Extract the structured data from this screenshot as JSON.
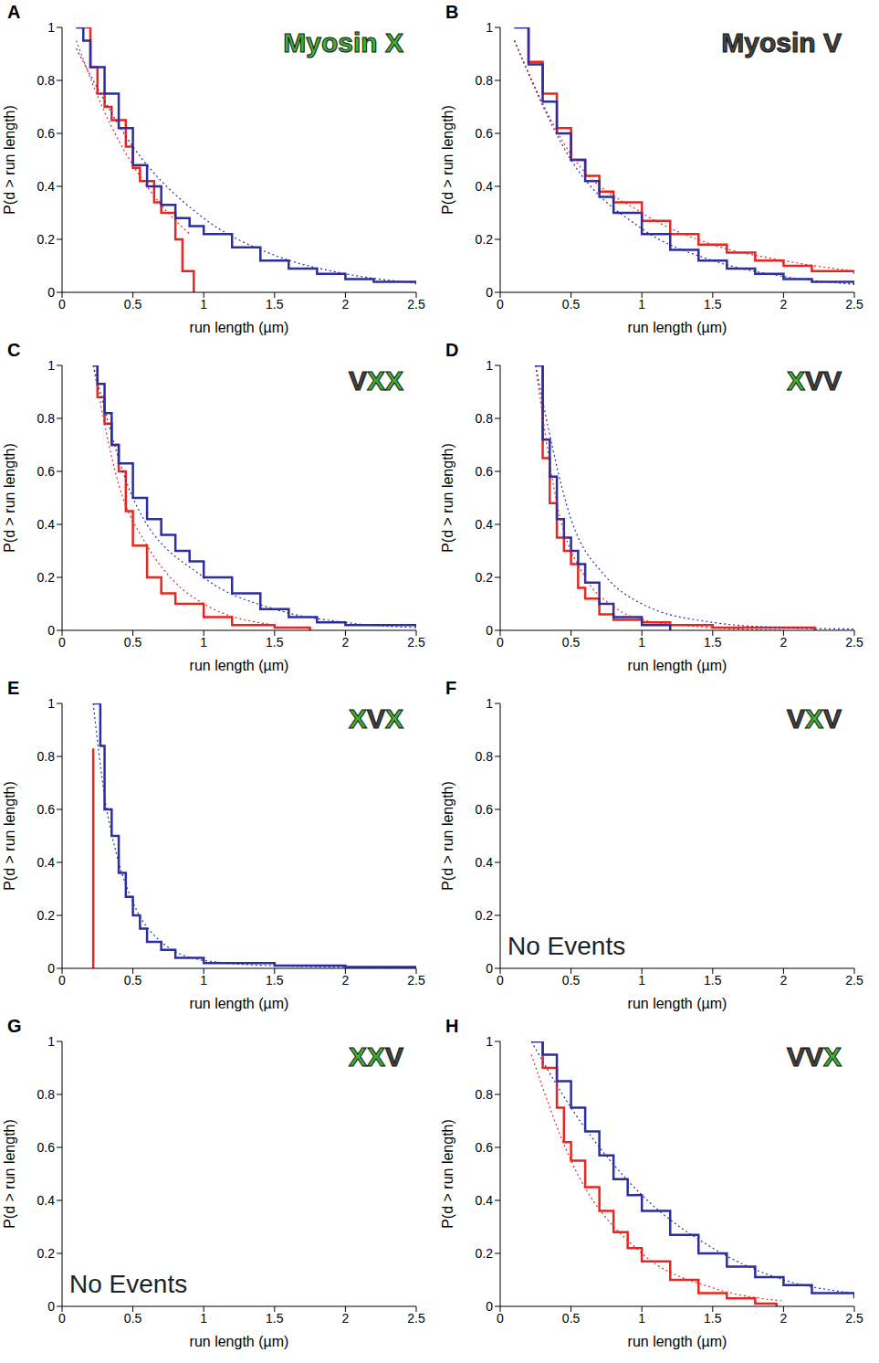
{
  "chart_data": [
    {
      "type": "line",
      "panel_label": "A",
      "title": "Myosin X",
      "xlabel": "run length (µm)",
      "ylabel": "P(d > run length)",
      "xlim": [
        0,
        2.5
      ],
      "ylim": [
        0,
        1
      ],
      "xticks": [
        0,
        0.5,
        1,
        1.5,
        2,
        2.5
      ],
      "yticks": [
        0,
        0.2,
        0.4,
        0.6,
        0.8,
        1
      ],
      "grid": false,
      "series": [
        {
          "type": "step",
          "color": "#e8251f",
          "line_style": "solid",
          "x": [
            0.1,
            0.2,
            0.25,
            0.3,
            0.35,
            0.45,
            0.5,
            0.55,
            0.65,
            0.7,
            0.8,
            0.85,
            0.93
          ],
          "values": [
            1,
            0.85,
            0.75,
            0.7,
            0.65,
            0.55,
            0.47,
            0.42,
            0.34,
            0.3,
            0.2,
            0.08,
            0
          ]
        },
        {
          "type": "step",
          "color": "#2b2e9e",
          "line_style": "solid",
          "x": [
            0.1,
            0.15,
            0.2,
            0.3,
            0.4,
            0.5,
            0.6,
            0.7,
            0.8,
            0.9,
            1.0,
            1.2,
            1.4,
            1.6,
            1.8,
            2.0,
            2.2,
            2.5
          ],
          "values": [
            1,
            0.95,
            0.85,
            0.75,
            0.62,
            0.48,
            0.4,
            0.33,
            0.28,
            0.25,
            0.22,
            0.17,
            0.12,
            0.09,
            0.07,
            0.05,
            0.04,
            0.03
          ]
        },
        {
          "type": "line",
          "color": "#e8251f",
          "line_style": "dotted",
          "x": [
            0.1,
            0.3,
            0.5,
            0.7,
            0.9
          ],
          "values": [
            0.95,
            0.68,
            0.48,
            0.33,
            0.22
          ]
        },
        {
          "type": "line",
          "color": "#2b2e9e",
          "line_style": "dotted",
          "x": [
            0.1,
            0.5,
            1,
            1.5,
            2,
            2.5
          ],
          "values": [
            0.92,
            0.55,
            0.28,
            0.14,
            0.07,
            0.035
          ]
        }
      ]
    },
    {
      "type": "line",
      "panel_label": "B",
      "title": "Myosin V",
      "xlabel": "run length (µm)",
      "ylabel": "P(d > run length)",
      "xlim": [
        0,
        2.5
      ],
      "ylim": [
        0,
        1
      ],
      "xticks": [
        0,
        0.5,
        1,
        1.5,
        2,
        2.5
      ],
      "yticks": [
        0,
        0.2,
        0.4,
        0.6,
        0.8,
        1
      ],
      "grid": false,
      "series": [
        {
          "type": "step",
          "color": "#e8251f",
          "line_style": "solid",
          "x": [
            0.1,
            0.2,
            0.3,
            0.4,
            0.5,
            0.6,
            0.7,
            0.8,
            1.0,
            1.2,
            1.4,
            1.6,
            1.8,
            2.0,
            2.2,
            2.5
          ],
          "values": [
            1,
            0.87,
            0.75,
            0.62,
            0.5,
            0.44,
            0.38,
            0.34,
            0.27,
            0.22,
            0.18,
            0.15,
            0.12,
            0.1,
            0.08,
            0.07
          ]
        },
        {
          "type": "step",
          "color": "#2b2e9e",
          "line_style": "solid",
          "x": [
            0.1,
            0.2,
            0.3,
            0.4,
            0.5,
            0.6,
            0.7,
            0.8,
            1.0,
            1.2,
            1.4,
            1.6,
            1.8,
            2.0,
            2.2,
            2.5
          ],
          "values": [
            1,
            0.86,
            0.72,
            0.6,
            0.5,
            0.42,
            0.36,
            0.3,
            0.22,
            0.16,
            0.12,
            0.09,
            0.07,
            0.05,
            0.04,
            0.03
          ]
        },
        {
          "type": "line",
          "color": "#e8251f",
          "line_style": "dotted",
          "x": [
            0.1,
            0.5,
            1,
            1.5,
            2,
            2.5
          ],
          "values": [
            0.95,
            0.52,
            0.3,
            0.18,
            0.12,
            0.08
          ]
        },
        {
          "type": "line",
          "color": "#2b2e9e",
          "line_style": "dotted",
          "x": [
            0.1,
            0.5,
            1,
            1.5,
            2,
            2.5
          ],
          "values": [
            0.95,
            0.5,
            0.24,
            0.12,
            0.06,
            0.03
          ]
        }
      ]
    },
    {
      "type": "line",
      "panel_label": "C",
      "title": "VXX",
      "xlabel": "run length (µm)",
      "ylabel": "P(d > run length)",
      "xlim": [
        0,
        2.5
      ],
      "ylim": [
        0,
        1
      ],
      "xticks": [
        0,
        0.5,
        1,
        1.5,
        2,
        2.5
      ],
      "yticks": [
        0,
        0.2,
        0.4,
        0.6,
        0.8,
        1
      ],
      "grid": false,
      "series": [
        {
          "type": "step",
          "color": "#e8251f",
          "line_style": "solid",
          "x": [
            0.22,
            0.25,
            0.3,
            0.35,
            0.4,
            0.45,
            0.5,
            0.6,
            0.7,
            0.8,
            1.0,
            1.2,
            1.5,
            1.75
          ],
          "values": [
            1,
            0.88,
            0.78,
            0.7,
            0.6,
            0.45,
            0.32,
            0.2,
            0.14,
            0.1,
            0.05,
            0.02,
            0.01,
            0
          ]
        },
        {
          "type": "step",
          "color": "#2b2e9e",
          "line_style": "solid",
          "x": [
            0.22,
            0.25,
            0.3,
            0.35,
            0.4,
            0.5,
            0.6,
            0.7,
            0.8,
            0.9,
            1.0,
            1.2,
            1.4,
            1.6,
            1.8,
            2.0,
            2.5
          ],
          "values": [
            1,
            0.93,
            0.82,
            0.7,
            0.63,
            0.5,
            0.42,
            0.36,
            0.3,
            0.26,
            0.2,
            0.14,
            0.08,
            0.05,
            0.03,
            0.02,
            0.01
          ]
        },
        {
          "type": "line",
          "color": "#e8251f",
          "line_style": "dotted",
          "x": [
            0.22,
            0.4,
            0.6,
            0.8,
            1.0,
            1.5
          ],
          "values": [
            1,
            0.55,
            0.32,
            0.18,
            0.1,
            0.02
          ]
        },
        {
          "type": "line",
          "color": "#2b2e9e",
          "line_style": "dotted",
          "x": [
            0.22,
            0.5,
            1,
            1.5,
            2,
            2.5
          ],
          "values": [
            1,
            0.5,
            0.2,
            0.08,
            0.03,
            0.01
          ]
        }
      ]
    },
    {
      "type": "line",
      "panel_label": "D",
      "title": "XVV",
      "xlabel": "run length (µm)",
      "ylabel": "P(d > run length)",
      "xlim": [
        0,
        2.5
      ],
      "ylim": [
        0,
        1
      ],
      "xticks": [
        0,
        0.5,
        1,
        1.5,
        2,
        2.5
      ],
      "yticks": [
        0,
        0.2,
        0.4,
        0.6,
        0.8,
        1
      ],
      "grid": false,
      "series": [
        {
          "type": "step",
          "color": "#e8251f",
          "line_style": "solid",
          "x": [
            0.25,
            0.3,
            0.35,
            0.4,
            0.45,
            0.5,
            0.55,
            0.6,
            0.7,
            0.8,
            1.0,
            1.2,
            1.5,
            2.22
          ],
          "values": [
            1,
            0.65,
            0.48,
            0.35,
            0.3,
            0.25,
            0.16,
            0.12,
            0.06,
            0.04,
            0.03,
            0.02,
            0.01,
            0
          ]
        },
        {
          "type": "step",
          "color": "#2b2e9e",
          "line_style": "solid",
          "x": [
            0.25,
            0.3,
            0.35,
            0.4,
            0.45,
            0.5,
            0.55,
            0.6,
            0.7,
            0.8,
            1.0,
            1.2
          ],
          "values": [
            1,
            0.72,
            0.58,
            0.42,
            0.35,
            0.3,
            0.25,
            0.18,
            0.1,
            0.05,
            0.02,
            0
          ]
        },
        {
          "type": "line",
          "color": "#e8251f",
          "line_style": "dotted",
          "x": [
            0.25,
            0.4,
            0.6,
            0.8,
            1.0,
            1.5,
            2.0
          ],
          "values": [
            1,
            0.48,
            0.2,
            0.09,
            0.04,
            0.01,
            0
          ]
        },
        {
          "type": "line",
          "color": "#2b2e9e",
          "line_style": "dotted",
          "x": [
            0.25,
            0.5,
            0.75,
            1,
            1.5,
            2,
            2.5
          ],
          "values": [
            1,
            0.42,
            0.2,
            0.1,
            0.03,
            0.01,
            0.005
          ]
        }
      ]
    },
    {
      "type": "line",
      "panel_label": "E",
      "title": "XVX",
      "xlabel": "run length (µm)",
      "ylabel": "P(d > run length)",
      "xlim": [
        0,
        2.5
      ],
      "ylim": [
        0,
        1
      ],
      "xticks": [
        0,
        0.5,
        1,
        1.5,
        2,
        2.5
      ],
      "yticks": [
        0,
        0.2,
        0.4,
        0.6,
        0.8,
        1
      ],
      "grid": false,
      "series": [
        {
          "type": "step",
          "color": "#e8251f",
          "line_style": "solid",
          "x": [
            0.22,
            0.22
          ],
          "values": [
            0.83,
            0
          ]
        },
        {
          "type": "step",
          "color": "#2b2e9e",
          "line_style": "solid",
          "x": [
            0.22,
            0.27,
            0.3,
            0.35,
            0.4,
            0.45,
            0.5,
            0.55,
            0.6,
            0.7,
            0.8,
            1.0,
            1.5,
            2.0,
            2.5
          ],
          "values": [
            1,
            0.84,
            0.6,
            0.5,
            0.36,
            0.27,
            0.2,
            0.15,
            0.1,
            0.07,
            0.04,
            0.02,
            0.01,
            0.005,
            0.003
          ]
        },
        {
          "type": "line",
          "color": "#2b2e9e",
          "line_style": "dotted",
          "x": [
            0.22,
            0.3,
            0.4,
            0.5,
            0.7,
            1.0,
            1.5,
            2.5
          ],
          "values": [
            1,
            0.65,
            0.4,
            0.25,
            0.1,
            0.03,
            0.01,
            0.002
          ]
        }
      ]
    },
    {
      "type": "line",
      "panel_label": "F",
      "title": "VXV",
      "annotation": "No Events",
      "xlabel": "run length (µm)",
      "ylabel": "P(d > run length)",
      "xlim": [
        0,
        2.5
      ],
      "ylim": [
        0,
        1
      ],
      "xticks": [
        0,
        0.5,
        1,
        1.5,
        2,
        2.5
      ],
      "yticks": [
        0,
        0.2,
        0.4,
        0.6,
        0.8,
        1
      ],
      "grid": false,
      "series": []
    },
    {
      "type": "line",
      "panel_label": "G",
      "title": "XXV",
      "annotation": "No Events",
      "xlabel": "run length (µm)",
      "ylabel": "P(d > run length)",
      "xlim": [
        0,
        2.5
      ],
      "ylim": [
        0,
        1
      ],
      "xticks": [
        0,
        0.5,
        1,
        1.5,
        2,
        2.5
      ],
      "yticks": [
        0,
        0.2,
        0.4,
        0.6,
        0.8,
        1
      ],
      "grid": false,
      "series": []
    },
    {
      "type": "line",
      "panel_label": "H",
      "title": "VVX",
      "xlabel": "run length (µm)",
      "ylabel": "P(d > run length)",
      "xlim": [
        0,
        2.5
      ],
      "ylim": [
        0,
        1
      ],
      "xticks": [
        0,
        0.5,
        1,
        1.5,
        2,
        2.5
      ],
      "yticks": [
        0,
        0.2,
        0.4,
        0.6,
        0.8,
        1
      ],
      "grid": false,
      "series": [
        {
          "type": "step",
          "color": "#e8251f",
          "line_style": "solid",
          "x": [
            0.22,
            0.3,
            0.4,
            0.45,
            0.5,
            0.6,
            0.7,
            0.8,
            0.9,
            1.0,
            1.2,
            1.4,
            1.6,
            1.8,
            1.95
          ],
          "values": [
            1,
            0.9,
            0.75,
            0.62,
            0.55,
            0.45,
            0.36,
            0.28,
            0.22,
            0.17,
            0.1,
            0.05,
            0.03,
            0.01,
            0
          ]
        },
        {
          "type": "step",
          "color": "#2b2e9e",
          "line_style": "solid",
          "x": [
            0.22,
            0.3,
            0.4,
            0.5,
            0.6,
            0.7,
            0.8,
            0.9,
            1.0,
            1.2,
            1.4,
            1.6,
            1.8,
            2.0,
            2.2,
            2.5
          ],
          "values": [
            1,
            0.95,
            0.85,
            0.75,
            0.66,
            0.57,
            0.48,
            0.42,
            0.36,
            0.27,
            0.2,
            0.15,
            0.11,
            0.08,
            0.05,
            0.03
          ]
        },
        {
          "type": "line",
          "color": "#e8251f",
          "line_style": "dotted",
          "x": [
            0.22,
            0.5,
            1,
            1.5,
            2
          ],
          "values": [
            0.95,
            0.55,
            0.2,
            0.07,
            0.02
          ]
        },
        {
          "type": "line",
          "color": "#2b2e9e",
          "line_style": "dotted",
          "x": [
            0.22,
            0.5,
            1,
            1.5,
            2,
            2.5
          ],
          "values": [
            1,
            0.75,
            0.42,
            0.22,
            0.1,
            0.05
          ]
        }
      ]
    }
  ]
}
